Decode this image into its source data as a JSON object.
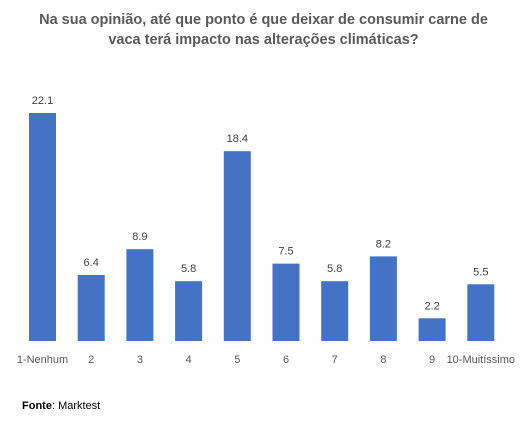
{
  "chart_data": {
    "type": "bar",
    "title_line1": "Na sua opinião, até que ponto é que deixar de consumir carne de",
    "title_line2": "vaca terá impacto nas alterações climáticas?",
    "categories": [
      "1-Nenhum",
      "2",
      "3",
      "4",
      "5",
      "6",
      "7",
      "8",
      "9",
      "10-Muitíssimo"
    ],
    "values": [
      22.1,
      6.4,
      8.9,
      5.8,
      18.4,
      7.5,
      5.8,
      8.2,
      2.2,
      5.5
    ],
    "data_labels": [
      "22.1",
      "6.4",
      "8.9",
      "5.8",
      "18.4",
      "7.5",
      "5.8",
      "8.2",
      "2.2",
      "5.5"
    ],
    "xlabel": "",
    "ylabel": "",
    "ylim": [
      0,
      22.1
    ],
    "grid": false,
    "legend": "none",
    "bar_color": "#4472C4"
  },
  "source": {
    "label": "Fonte",
    "value": ": Marktest"
  }
}
